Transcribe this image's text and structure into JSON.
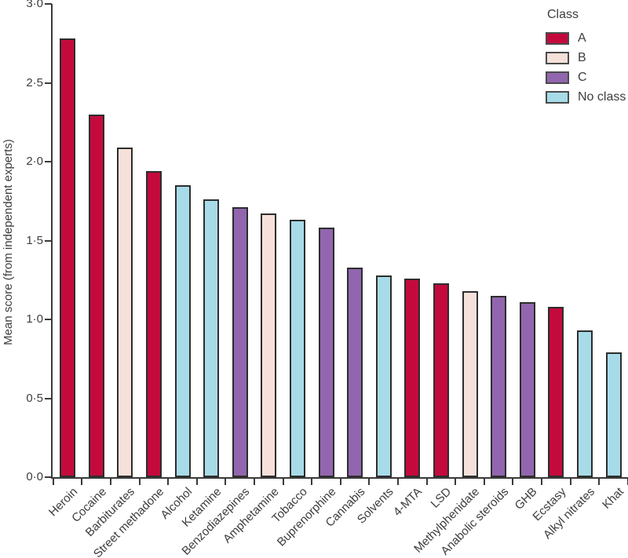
{
  "chart_data": {
    "type": "bar",
    "title": "",
    "xlabel": "",
    "ylabel": "Mean score (from independent experts)",
    "ylim": [
      0.0,
      3.0
    ],
    "yticks": [
      0.0,
      0.5,
      1.0,
      1.5,
      2.0,
      2.5,
      3.0
    ],
    "ytick_labels": [
      "0·0",
      "0·5",
      "1·0",
      "1·5",
      "2·0",
      "2·5",
      "3·0"
    ],
    "grid": false,
    "categories": [
      "Heroin",
      "Cocaine",
      "Barbiturates",
      "Street methadone",
      "Alcohol",
      "Ketamine",
      "Benzodiazepines",
      "Amphetamine",
      "Tobacco",
      "Buprenorphine",
      "Cannabis",
      "Solvents",
      "4-MTA",
      "LSD",
      "Methylphenidate",
      "Anabolic steroids",
      "GHB",
      "Ecstasy",
      "Alkyl nitrates",
      "Khat"
    ],
    "values": [
      2.78,
      2.3,
      2.09,
      1.94,
      1.85,
      1.76,
      1.71,
      1.67,
      1.63,
      1.58,
      1.33,
      1.28,
      1.26,
      1.23,
      1.18,
      1.15,
      1.11,
      1.08,
      0.93,
      0.79
    ],
    "classes": [
      "A",
      "A",
      "B",
      "A",
      "No class",
      "No class",
      "C",
      "B",
      "No class",
      "C",
      "C",
      "No class",
      "A",
      "A",
      "B",
      "C",
      "C",
      "A",
      "No class",
      "No class"
    ],
    "class_colors": {
      "A": "#c40a3c",
      "B": "#f6e1da",
      "C": "#9166ae",
      "No class": "#a7dbe8"
    },
    "bar_border_color": "#2d2d2d",
    "axis_color": "#3a3a3a",
    "text_color": "#3d3d3d",
    "legend": {
      "title": "Class",
      "position": "top-right",
      "entries": [
        "A",
        "B",
        "C",
        "No class"
      ]
    }
  }
}
